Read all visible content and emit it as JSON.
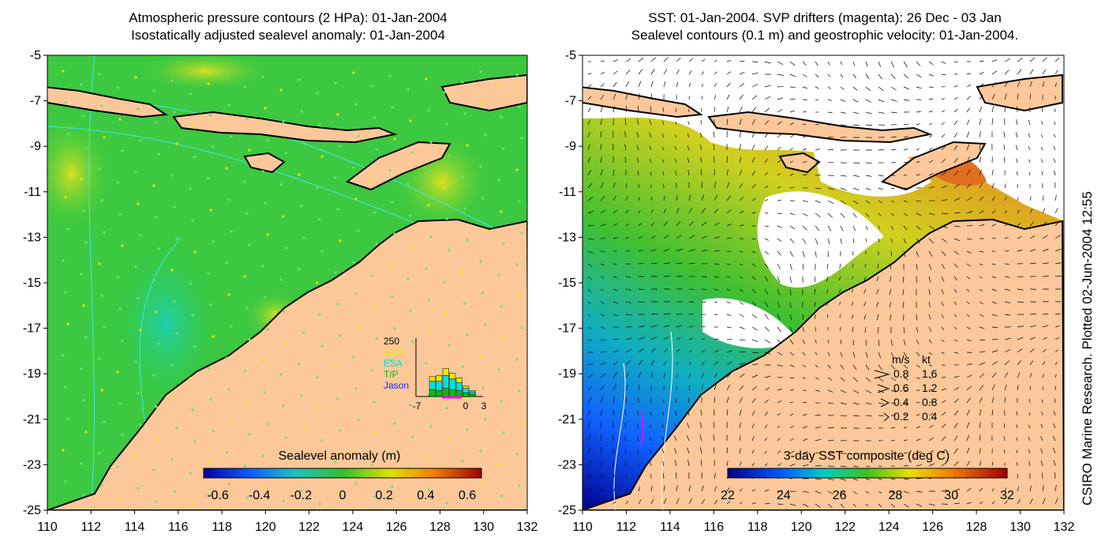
{
  "left_panel": {
    "title_line1": "Atmospheric pressure contours (2 HPa): 01-Jan-2004",
    "title_line2": "Isostatically adjusted sealevel anomaly: 01-Jan-2004",
    "colorbar_label": "Sealevel anomaly (m)",
    "colorbar_ticks": [
      "-0.6",
      "-0.4",
      "-0.2",
      "0",
      "0.2",
      "0.4",
      "0.6"
    ],
    "inset": {
      "ymax_label": "250",
      "legend": [
        {
          "label": "GFO",
          "color": "#e8e800"
        },
        {
          "label": "ESA",
          "color": "#00e0e0"
        },
        {
          "label": "T/P",
          "color": "#00c000"
        },
        {
          "label": "Jason",
          "color": "#2020ff"
        }
      ],
      "x_ticks": [
        "-7",
        "0",
        "3"
      ],
      "bars": [
        {
          "day": -5,
          "gfo": 20,
          "esa": 35,
          "tp": 30
        },
        {
          "day": -4,
          "gfo": 25,
          "esa": 40,
          "tp": 25
        },
        {
          "day": -3,
          "gfo": 30,
          "esa": 55,
          "tp": 35
        },
        {
          "day": -2,
          "gfo": 25,
          "esa": 45,
          "tp": 30
        },
        {
          "day": -1,
          "gfo": 20,
          "esa": 35,
          "tp": 25
        },
        {
          "day": 0,
          "gfo": 10,
          "esa": 20,
          "tp": 15
        },
        {
          "day": 1,
          "gfo": 5,
          "esa": 10,
          "tp": 10
        }
      ]
    }
  },
  "right_panel": {
    "title_line1": "SST: 01-Jan-2004. SVP drifters (magenta): 26 Dec - 03 Jan",
    "title_line2": "Sealevel contours (0.1 m) and geostrophic velocity: 01-Jan-2004.",
    "colorbar_label": "3-day SST composite (deg C)",
    "colorbar_ticks": [
      "22",
      "24",
      "26",
      "28",
      "30",
      "32"
    ],
    "velocity_legend": {
      "header_ms": "m/s",
      "header_kt": "kt",
      "rows": [
        {
          "ms": "0.8",
          "kt": "1.6"
        },
        {
          "ms": "0.6",
          "kt": "1.2"
        },
        {
          "ms": "0.4",
          "kt": "0.8"
        },
        {
          "ms": "0.2",
          "kt": "0.4"
        }
      ]
    }
  },
  "axes": {
    "y_ticks": [
      "-5",
      "-7",
      "-9",
      "-11",
      "-13",
      "-15",
      "-17",
      "-19",
      "-21",
      "-23",
      "-25"
    ],
    "x_ticks": [
      "110",
      "112",
      "114",
      "116",
      "118",
      "120",
      "122",
      "124",
      "126",
      "128",
      "130",
      "132"
    ]
  },
  "side_note": "CSIRO Marine Research. Plotted 02-Jun-2004 12:55",
  "colors": {
    "land": "#fcc89a",
    "coast": "#000000",
    "sea_green": "#3cc840",
    "pressure_contour": "#40e8e8"
  }
}
